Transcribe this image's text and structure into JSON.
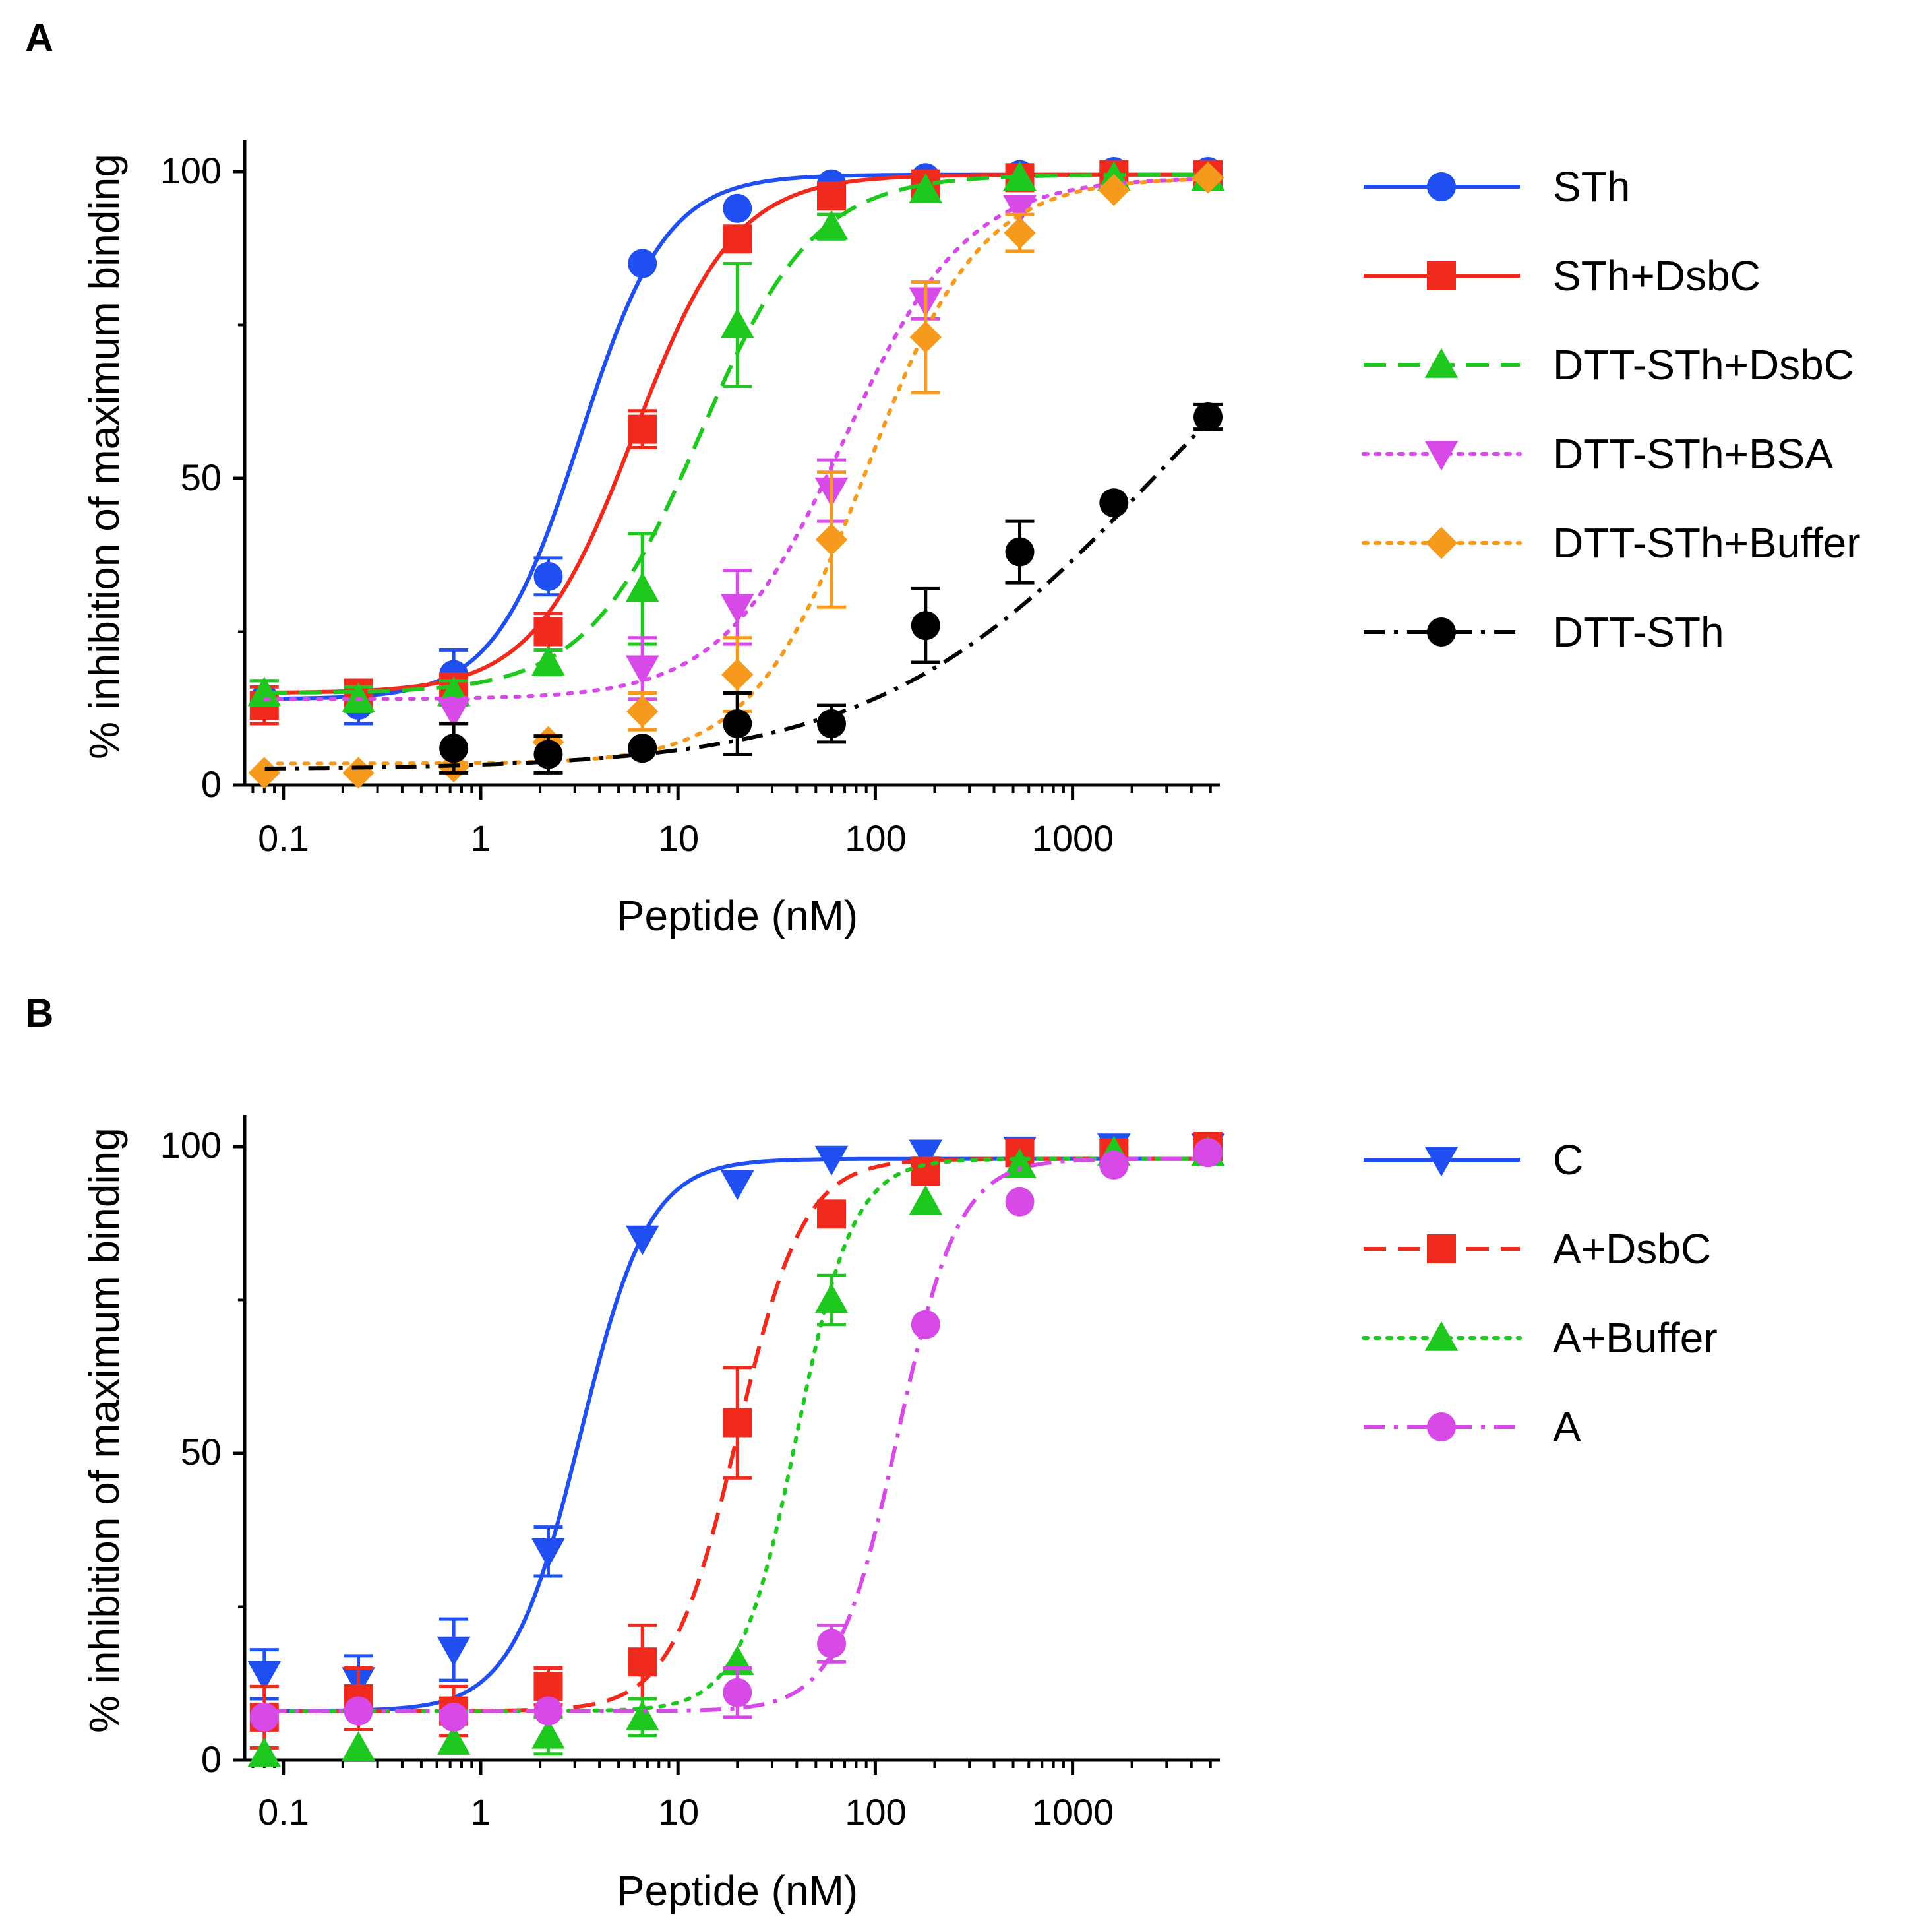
{
  "colors": {
    "blue": "#1f4ff0",
    "red": "#f02a1c",
    "green": "#1ec81e",
    "magenta": "#d84ae8",
    "orange": "#f59a1c",
    "black": "#000000"
  },
  "chart_data": [
    {
      "panel": "A",
      "type": "scatter",
      "title": "",
      "xlabel": "Peptide (nM)",
      "ylabel": "% inhibition of maximum binding",
      "xscale": "log",
      "xlim": [
        0.07,
        5000
      ],
      "ylim": [
        0,
        100
      ],
      "x_tick_labels": [
        "0.1",
        "1",
        "10",
        "100",
        "1000"
      ],
      "y_tick_labels": [
        "0",
        "50",
        "100"
      ],
      "legend_position": "right",
      "series": [
        {
          "name": "STh",
          "color_key": "blue",
          "marker": "circle",
          "line": "solid",
          "x": [
            0.08,
            0.24,
            0.73,
            2.2,
            6.6,
            20,
            60,
            180,
            540,
            1620,
            4860
          ],
          "y": [
            14,
            13,
            18,
            34,
            85,
            94,
            98,
            99,
            99.5,
            100,
            100
          ],
          "err": [
            3,
            3,
            4,
            3,
            0,
            0,
            0,
            0,
            0,
            0,
            0
          ],
          "fit": {
            "bottom": 14,
            "top": 99.5,
            "ec50": 3.2,
            "hill": 2.0
          }
        },
        {
          "name": "STh+DsbC",
          "color_key": "red",
          "marker": "square",
          "line": "solid",
          "x": [
            0.08,
            0.24,
            0.73,
            2.2,
            6.6,
            20,
            60,
            180,
            540,
            1620,
            4860
          ],
          "y": [
            13,
            15,
            16,
            25,
            58,
            89,
            96,
            98,
            99,
            99.5,
            99.5
          ],
          "err": [
            3,
            2,
            2,
            3,
            3,
            2,
            0,
            0,
            0,
            0,
            0
          ],
          "fit": {
            "bottom": 15,
            "top": 99.5,
            "ec50": 6.0,
            "hill": 1.7
          }
        },
        {
          "name": "DTT-STh+DsbC",
          "color_key": "green",
          "marker": "triangle-up",
          "line": "dashed",
          "x": [
            0.08,
            0.24,
            0.73,
            2.2,
            6.6,
            20,
            60,
            180,
            540,
            1620,
            4860
          ],
          "y": [
            15,
            14,
            15,
            20,
            32,
            75,
            91,
            97,
            99,
            99,
            99
          ],
          "err": [
            2,
            2,
            2,
            2,
            9,
            10,
            2,
            0,
            0,
            0,
            0
          ],
          "fit": {
            "bottom": 15,
            "top": 99.5,
            "ec50": 13,
            "hill": 1.5
          }
        },
        {
          "name": "DTT-STh+BSA",
          "color_key": "magenta",
          "marker": "triangle-down",
          "line": "dotted",
          "x": [
            0.73,
            6.6,
            20,
            60,
            180,
            540
          ],
          "y": [
            12,
            19,
            29,
            48,
            79,
            94
          ],
          "err": [
            2,
            5,
            6,
            5,
            3,
            0
          ],
          "fit": {
            "bottom": 14,
            "top": 99,
            "ec50": 70,
            "hill": 1.4
          }
        },
        {
          "name": "DTT-STh+Buffer",
          "color_key": "orange",
          "marker": "diamond",
          "line": "dotted",
          "x": [
            0.08,
            0.24,
            0.73,
            2.2,
            6.6,
            20,
            60,
            180,
            540,
            1620,
            4860
          ],
          "y": [
            2,
            2,
            3,
            7,
            12,
            18,
            40,
            73,
            90,
            97,
            99
          ],
          "err": [
            0,
            0,
            0,
            0,
            3,
            6,
            11,
            9,
            3,
            0,
            0
          ],
          "fit": {
            "bottom": 3.5,
            "top": 99,
            "ec50": 90,
            "hill": 1.5
          }
        },
        {
          "name": "DTT-STh",
          "color_key": "black",
          "marker": "circle",
          "line": "dashdot",
          "x": [
            0.73,
            2.2,
            6.6,
            20,
            60,
            180,
            540,
            1620,
            4860
          ],
          "y": [
            6,
            5,
            6,
            10,
            10,
            26,
            38,
            46,
            60
          ],
          "err": [
            4,
            3,
            0,
            5,
            3,
            6,
            5,
            0,
            2
          ],
          "fit": {
            "bottom": 2.5,
            "top": 100,
            "ec50": 2800,
            "hill": 0.6
          }
        }
      ]
    },
    {
      "panel": "B",
      "type": "scatter",
      "title": "",
      "xlabel": "Peptide (nM)",
      "ylabel": "% inhibition of maximum binding",
      "xscale": "log",
      "xlim": [
        0.07,
        5000
      ],
      "ylim": [
        0,
        100
      ],
      "x_tick_labels": [
        "0.1",
        "1",
        "10",
        "100",
        "1000"
      ],
      "y_tick_labels": [
        "0",
        "50",
        "100"
      ],
      "legend_position": "right",
      "series": [
        {
          "name": "C",
          "color_key": "blue",
          "marker": "triangle-down",
          "line": "solid",
          "x": [
            0.08,
            0.24,
            0.73,
            2.2,
            6.6,
            20,
            60,
            180,
            540,
            1620,
            4860
          ],
          "y": [
            14,
            13,
            18,
            34,
            85,
            94,
            98,
            99,
            99.5,
            100,
            100
          ],
          "err": [
            4,
            4,
            5,
            4,
            0,
            0,
            0,
            0,
            0,
            0,
            0
          ],
          "fit": {
            "bottom": 8,
            "top": 98,
            "ec50": 3.2,
            "hill": 2.5
          }
        },
        {
          "name": "A+DsbC",
          "color_key": "red",
          "marker": "square",
          "line": "dashed",
          "x": [
            0.08,
            0.24,
            0.73,
            2.2,
            6.6,
            20,
            60,
            180,
            540,
            1620,
            4860
          ],
          "y": [
            7,
            10,
            8,
            12,
            16,
            55,
            89,
            96,
            99,
            99,
            100
          ],
          "err": [
            5,
            5,
            4,
            3,
            6,
            9,
            0,
            0,
            0,
            0,
            0
          ],
          "fit": {
            "bottom": 8,
            "top": 98,
            "ec50": 20,
            "hill": 2.6
          }
        },
        {
          "name": "A+Buffer",
          "color_key": "green",
          "marker": "triangle-up",
          "line": "dotted",
          "x": [
            0.08,
            0.24,
            0.73,
            2.2,
            6.6,
            20,
            60,
            180,
            540,
            1620,
            4860
          ],
          "y": [
            1,
            2,
            3,
            4,
            7,
            16,
            75,
            91,
            97,
            99,
            99
          ],
          "err": [
            0,
            0,
            0,
            3,
            3,
            0,
            4,
            0,
            0,
            0,
            0
          ],
          "fit": {
            "bottom": 8,
            "top": 98,
            "ec50": 40,
            "hill": 3.0
          }
        },
        {
          "name": "A",
          "color_key": "magenta",
          "marker": "circle",
          "line": "dashdot",
          "x": [
            0.08,
            0.24,
            0.73,
            2.2,
            20,
            60,
            180,
            540,
            1620,
            4860
          ],
          "y": [
            7,
            8,
            7,
            8,
            11,
            19,
            71,
            91,
            97,
            99
          ],
          "err": [
            0,
            0,
            0,
            0,
            4,
            3,
            0,
            0,
            0,
            0
          ],
          "fit": {
            "bottom": 8,
            "top": 98,
            "ec50": 130,
            "hill": 2.8
          }
        }
      ]
    }
  ]
}
